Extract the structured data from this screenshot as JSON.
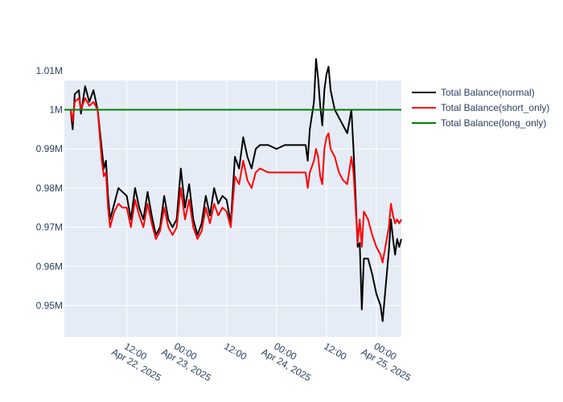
{
  "chart_data": {
    "type": "line",
    "title": "",
    "xlabel": "",
    "ylabel": "",
    "xlim": [
      "2025-04-21 21:00",
      "2025-04-25 06:00"
    ],
    "ylim": [
      0.942,
      1.0075
    ],
    "grid": true,
    "legend_position": "top-right",
    "x_ticks": [
      {
        "x": "2025-04-22 12:00",
        "label": "12:00\nApr 22, 2025"
      },
      {
        "x": "2025-04-23 00:00",
        "label": "00:00\nApr 23, 2025"
      },
      {
        "x": "2025-04-23 12:00",
        "label": "12:00"
      },
      {
        "x": "2025-04-24 00:00",
        "label": "00:00\nApr 24, 2025"
      },
      {
        "x": "2025-04-24 12:00",
        "label": "12:00"
      },
      {
        "x": "2025-04-25 00:00",
        "label": "00:00\nApr 25, 2025"
      }
    ],
    "y_ticks": [
      {
        "y": 0.95,
        "label": "0.95M"
      },
      {
        "y": 0.96,
        "label": "0.96M"
      },
      {
        "y": 0.97,
        "label": "0.97M"
      },
      {
        "y": 0.98,
        "label": "0.98M"
      },
      {
        "y": 0.99,
        "label": "0.99M"
      },
      {
        "y": 1.0,
        "label": "1M"
      },
      {
        "y": 1.01,
        "label": "1.01M"
      }
    ],
    "series": [
      {
        "name": "Total Balance(normal)",
        "color": "#000000",
        "points": [
          [
            "2025-04-21 21:00",
            1.0
          ],
          [
            "2025-04-21 22:30",
            1.0
          ],
          [
            "2025-04-21 23:00",
            0.995
          ],
          [
            "2025-04-21 23:30",
            1.004
          ],
          [
            "2025-04-22 00:30",
            1.005
          ],
          [
            "2025-04-22 01:00",
            0.999
          ],
          [
            "2025-04-22 02:00",
            1.006
          ],
          [
            "2025-04-22 03:00",
            1.002
          ],
          [
            "2025-04-22 04:00",
            1.005
          ],
          [
            "2025-04-22 05:00",
            1.0
          ],
          [
            "2025-04-22 06:00",
            0.99
          ],
          [
            "2025-04-22 06:30",
            0.985
          ],
          [
            "2025-04-22 07:00",
            0.987
          ],
          [
            "2025-04-22 07:30",
            0.978
          ],
          [
            "2025-04-22 08:00",
            0.972
          ],
          [
            "2025-04-22 09:00",
            0.976
          ],
          [
            "2025-04-22 10:00",
            0.98
          ],
          [
            "2025-04-22 11:00",
            0.979
          ],
          [
            "2025-04-22 12:00",
            0.978
          ],
          [
            "2025-04-22 13:00",
            0.972
          ],
          [
            "2025-04-22 14:00",
            0.98
          ],
          [
            "2025-04-22 15:00",
            0.975
          ],
          [
            "2025-04-22 16:00",
            0.972
          ],
          [
            "2025-04-22 17:00",
            0.979
          ],
          [
            "2025-04-22 18:00",
            0.973
          ],
          [
            "2025-04-22 19:00",
            0.968
          ],
          [
            "2025-04-22 20:00",
            0.97
          ],
          [
            "2025-04-22 21:00",
            0.978
          ],
          [
            "2025-04-22 22:00",
            0.972
          ],
          [
            "2025-04-22 23:00",
            0.97
          ],
          [
            "2025-04-23 00:00",
            0.972
          ],
          [
            "2025-04-23 01:00",
            0.985
          ],
          [
            "2025-04-23 02:00",
            0.975
          ],
          [
            "2025-04-23 03:00",
            0.981
          ],
          [
            "2025-04-23 04:00",
            0.972
          ],
          [
            "2025-04-23 05:00",
            0.968
          ],
          [
            "2025-04-23 06:00",
            0.971
          ],
          [
            "2025-04-23 07:00",
            0.978
          ],
          [
            "2025-04-23 08:00",
            0.973
          ],
          [
            "2025-04-23 09:00",
            0.98
          ],
          [
            "2025-04-23 10:00",
            0.976
          ],
          [
            "2025-04-23 11:00",
            0.978
          ],
          [
            "2025-04-23 12:00",
            0.977
          ],
          [
            "2025-04-23 13:00",
            0.971
          ],
          [
            "2025-04-23 14:00",
            0.988
          ],
          [
            "2025-04-23 15:00",
            0.985
          ],
          [
            "2025-04-23 16:00",
            0.993
          ],
          [
            "2025-04-23 17:00",
            0.988
          ],
          [
            "2025-04-23 18:00",
            0.985
          ],
          [
            "2025-04-23 19:00",
            0.99
          ],
          [
            "2025-04-23 20:00",
            0.991
          ],
          [
            "2025-04-23 22:00",
            0.991
          ],
          [
            "2025-04-24 00:00",
            0.99
          ],
          [
            "2025-04-24 02:00",
            0.991
          ],
          [
            "2025-04-24 04:00",
            0.991
          ],
          [
            "2025-04-24 06:00",
            0.991
          ],
          [
            "2025-04-24 07:00",
            0.991
          ],
          [
            "2025-04-24 07:30",
            0.987
          ],
          [
            "2025-04-24 08:00",
            0.995
          ],
          [
            "2025-04-24 09:00",
            1.002
          ],
          [
            "2025-04-24 09:30",
            1.013
          ],
          [
            "2025-04-24 10:00",
            1.008
          ],
          [
            "2025-04-24 10:30",
            1.001
          ],
          [
            "2025-04-24 11:00",
            0.996
          ],
          [
            "2025-04-24 11:30",
            1.005
          ],
          [
            "2025-04-24 12:00",
            1.009
          ],
          [
            "2025-04-24 12:30",
            1.011
          ],
          [
            "2025-04-24 13:00",
            1.005
          ],
          [
            "2025-04-24 14:00",
            1.0
          ],
          [
            "2025-04-24 15:00",
            0.998
          ],
          [
            "2025-04-24 16:00",
            0.996
          ],
          [
            "2025-04-24 17:00",
            0.994
          ],
          [
            "2025-04-24 18:00",
            1.0
          ],
          [
            "2025-04-24 18:30",
            0.99
          ],
          [
            "2025-04-24 19:00",
            0.978
          ],
          [
            "2025-04-24 19:30",
            0.965
          ],
          [
            "2025-04-24 20:00",
            0.966
          ],
          [
            "2025-04-24 20:30",
            0.949
          ],
          [
            "2025-04-24 21:00",
            0.962
          ],
          [
            "2025-04-24 22:00",
            0.962
          ],
          [
            "2025-04-24 23:00",
            0.958
          ],
          [
            "2025-04-25 00:00",
            0.953
          ],
          [
            "2025-04-25 01:00",
            0.95
          ],
          [
            "2025-04-25 01:30",
            0.946
          ],
          [
            "2025-04-25 02:00",
            0.952
          ],
          [
            "2025-04-25 03:00",
            0.964
          ],
          [
            "2025-04-25 03:30",
            0.972
          ],
          [
            "2025-04-25 04:00",
            0.967
          ],
          [
            "2025-04-25 04:30",
            0.963
          ],
          [
            "2025-04-25 05:00",
            0.967
          ],
          [
            "2025-04-25 05:30",
            0.965
          ],
          [
            "2025-04-25 06:00",
            0.967
          ]
        ]
      },
      {
        "name": "Total Balance(short_only)",
        "color": "#ff0000",
        "points": [
          [
            "2025-04-21 21:00",
            1.0
          ],
          [
            "2025-04-21 22:30",
            1.0
          ],
          [
            "2025-04-21 23:00",
            0.997
          ],
          [
            "2025-04-21 23:30",
            1.002
          ],
          [
            "2025-04-22 00:30",
            1.003
          ],
          [
            "2025-04-22 01:00",
            1.0
          ],
          [
            "2025-04-22 02:00",
            1.003
          ],
          [
            "2025-04-22 03:00",
            1.001
          ],
          [
            "2025-04-22 04:00",
            1.002
          ],
          [
            "2025-04-22 05:00",
            1.0
          ],
          [
            "2025-04-22 06:00",
            0.987
          ],
          [
            "2025-04-22 06:30",
            0.983
          ],
          [
            "2025-04-22 07:00",
            0.984
          ],
          [
            "2025-04-22 07:30",
            0.975
          ],
          [
            "2025-04-22 08:00",
            0.97
          ],
          [
            "2025-04-22 09:00",
            0.974
          ],
          [
            "2025-04-22 10:00",
            0.976
          ],
          [
            "2025-04-22 11:00",
            0.975
          ],
          [
            "2025-04-22 12:00",
            0.975
          ],
          [
            "2025-04-22 13:00",
            0.97
          ],
          [
            "2025-04-22 14:00",
            0.977
          ],
          [
            "2025-04-22 15:00",
            0.973
          ],
          [
            "2025-04-22 16:00",
            0.97
          ],
          [
            "2025-04-22 17:00",
            0.976
          ],
          [
            "2025-04-22 18:00",
            0.971
          ],
          [
            "2025-04-22 19:00",
            0.967
          ],
          [
            "2025-04-22 20:00",
            0.969
          ],
          [
            "2025-04-22 21:00",
            0.975
          ],
          [
            "2025-04-22 22:00",
            0.97
          ],
          [
            "2025-04-22 23:00",
            0.968
          ],
          [
            "2025-04-23 00:00",
            0.97
          ],
          [
            "2025-04-23 01:00",
            0.98
          ],
          [
            "2025-04-23 02:00",
            0.972
          ],
          [
            "2025-04-23 03:00",
            0.977
          ],
          [
            "2025-04-23 04:00",
            0.97
          ],
          [
            "2025-04-23 05:00",
            0.967
          ],
          [
            "2025-04-23 06:00",
            0.969
          ],
          [
            "2025-04-23 07:00",
            0.975
          ],
          [
            "2025-04-23 08:00",
            0.971
          ],
          [
            "2025-04-23 09:00",
            0.976
          ],
          [
            "2025-04-23 10:00",
            0.973
          ],
          [
            "2025-04-23 11:00",
            0.975
          ],
          [
            "2025-04-23 12:00",
            0.974
          ],
          [
            "2025-04-23 13:00",
            0.97
          ],
          [
            "2025-04-23 14:00",
            0.983
          ],
          [
            "2025-04-23 15:00",
            0.981
          ],
          [
            "2025-04-23 16:00",
            0.987
          ],
          [
            "2025-04-23 17:00",
            0.982
          ],
          [
            "2025-04-23 18:00",
            0.98
          ],
          [
            "2025-04-23 19:00",
            0.984
          ],
          [
            "2025-04-23 20:00",
            0.985
          ],
          [
            "2025-04-23 22:00",
            0.984
          ],
          [
            "2025-04-24 00:00",
            0.984
          ],
          [
            "2025-04-24 02:00",
            0.984
          ],
          [
            "2025-04-24 04:00",
            0.984
          ],
          [
            "2025-04-24 06:00",
            0.984
          ],
          [
            "2025-04-24 07:00",
            0.984
          ],
          [
            "2025-04-24 07:30",
            0.98
          ],
          [
            "2025-04-24 08:00",
            0.984
          ],
          [
            "2025-04-24 09:00",
            0.987
          ],
          [
            "2025-04-24 09:30",
            0.99
          ],
          [
            "2025-04-24 10:00",
            0.988
          ],
          [
            "2025-04-24 10:30",
            0.983
          ],
          [
            "2025-04-24 11:00",
            0.981
          ],
          [
            "2025-04-24 11:30",
            0.99
          ],
          [
            "2025-04-24 12:00",
            0.993
          ],
          [
            "2025-04-24 12:30",
            0.994
          ],
          [
            "2025-04-24 13:00",
            0.99
          ],
          [
            "2025-04-24 14:00",
            0.988
          ],
          [
            "2025-04-24 15:00",
            0.984
          ],
          [
            "2025-04-24 16:00",
            0.982
          ],
          [
            "2025-04-24 17:00",
            0.981
          ],
          [
            "2025-04-24 18:00",
            0.988
          ],
          [
            "2025-04-24 18:30",
            0.984
          ],
          [
            "2025-04-24 19:00",
            0.975
          ],
          [
            "2025-04-24 19:30",
            0.966
          ],
          [
            "2025-04-24 20:00",
            0.972
          ],
          [
            "2025-04-24 20:30",
            0.965
          ],
          [
            "2025-04-24 21:00",
            0.974
          ],
          [
            "2025-04-24 22:00",
            0.972
          ],
          [
            "2025-04-24 23:00",
            0.968
          ],
          [
            "2025-04-25 00:00",
            0.965
          ],
          [
            "2025-04-25 01:00",
            0.963
          ],
          [
            "2025-04-25 01:30",
            0.961
          ],
          [
            "2025-04-25 02:00",
            0.964
          ],
          [
            "2025-04-25 03:00",
            0.97
          ],
          [
            "2025-04-25 03:30",
            0.976
          ],
          [
            "2025-04-25 04:00",
            0.973
          ],
          [
            "2025-04-25 04:30",
            0.971
          ],
          [
            "2025-04-25 05:00",
            0.972
          ],
          [
            "2025-04-25 05:30",
            0.971
          ],
          [
            "2025-04-25 06:00",
            0.972
          ]
        ]
      },
      {
        "name": "Total Balance(long_only)",
        "color": "#008000",
        "points": [
          [
            "2025-04-21 21:00",
            1.0
          ],
          [
            "2025-04-25 06:00",
            1.0
          ]
        ]
      }
    ]
  }
}
